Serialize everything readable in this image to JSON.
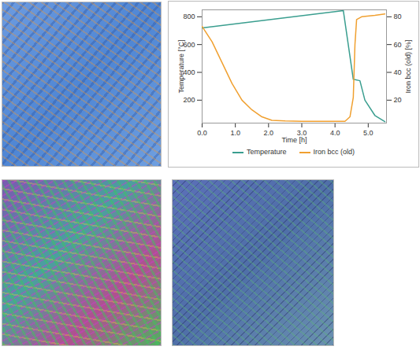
{
  "chart_data": {
    "type": "line",
    "xlabel": "Time [h]",
    "ylabel": "Temperature [°C]",
    "y2label": "Iron bcc (old) [%]",
    "xlim": [
      0,
      5.55
    ],
    "xticks": [
      0,
      1,
      2,
      3,
      4,
      5
    ],
    "ylim": [
      35,
      850
    ],
    "yticks": [
      200,
      400,
      600,
      800
    ],
    "y2lim": [
      3.5,
      85
    ],
    "y2ticks": [
      20,
      40,
      60,
      80
    ],
    "grid": false,
    "legend": "bottom",
    "series": [
      {
        "name": "Temperature",
        "color": "#3a9e8f",
        "axis": "y",
        "x": [
          0,
          4.25,
          4.55,
          4.75,
          4.9,
          5.2,
          5.5
        ],
        "values": [
          720,
          845,
          350,
          340,
          200,
          90,
          45
        ]
      },
      {
        "name": "Iron bcc (old)",
        "color": "#f0a030",
        "axis": "y2",
        "x": [
          0,
          0.3,
          0.6,
          0.9,
          1.2,
          1.5,
          1.8,
          2.1,
          2.5,
          3,
          4.3,
          4.45,
          4.55,
          4.6,
          4.65,
          4.8,
          5.2,
          5.5
        ],
        "values": [
          73,
          62,
          47,
          32,
          20,
          13,
          8,
          5.5,
          5,
          4.8,
          4.8,
          8,
          22,
          60,
          78,
          80,
          81,
          82
        ]
      }
    ]
  }
}
